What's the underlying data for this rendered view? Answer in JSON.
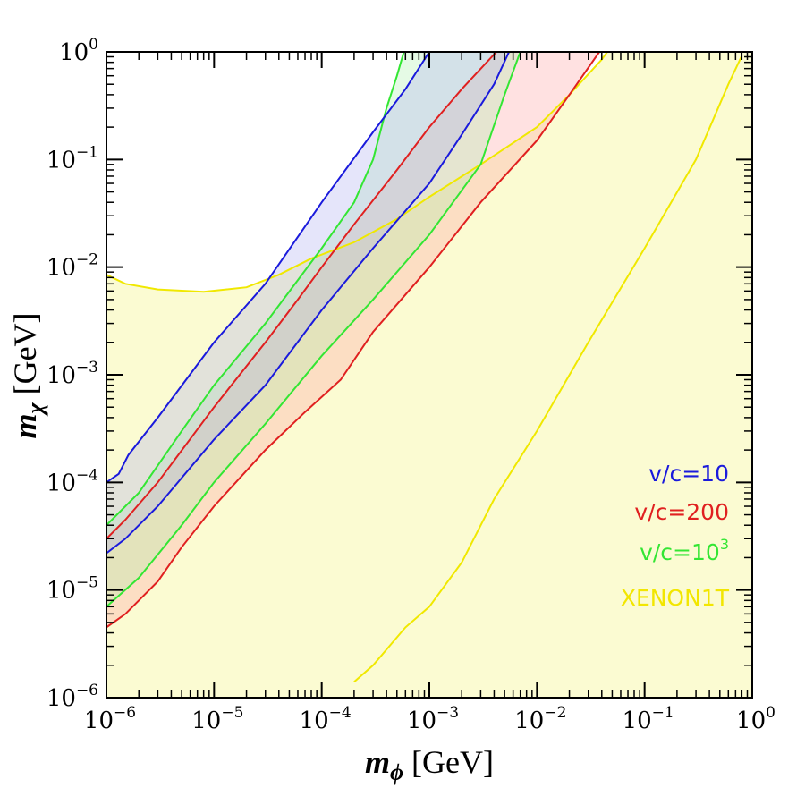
{
  "chart_data": {
    "type": "area",
    "xscale": "log",
    "yscale": "log",
    "xlim": [
      1e-06,
      1
    ],
    "ylim": [
      1e-06,
      1
    ],
    "xlabel": {
      "symbol": "m",
      "subscript": "ϕ",
      "unit": " [GeV]"
    },
    "ylabel": {
      "symbol": "m",
      "subscript": "χ",
      "unit": " [GeV]"
    },
    "x_ticks": [
      {
        "base": "10",
        "exp": "−6",
        "value": 1e-06
      },
      {
        "base": "10",
        "exp": "−5",
        "value": 1e-05
      },
      {
        "base": "10",
        "exp": "−4",
        "value": 0.0001
      },
      {
        "base": "10",
        "exp": "−3",
        "value": 0.001
      },
      {
        "base": "10",
        "exp": "−2",
        "value": 0.01
      },
      {
        "base": "10",
        "exp": "−1",
        "value": 0.1
      },
      {
        "base": "10",
        "exp": "0",
        "value": 1
      }
    ],
    "y_ticks": [
      {
        "base": "10",
        "exp": "−6",
        "value": 1e-06
      },
      {
        "base": "10",
        "exp": "−5",
        "value": 1e-05
      },
      {
        "base": "10",
        "exp": "−4",
        "value": 0.0001
      },
      {
        "base": "10",
        "exp": "−3",
        "value": 0.001
      },
      {
        "base": "10",
        "exp": "−2",
        "value": 0.01
      },
      {
        "base": "10",
        "exp": "−1",
        "value": 0.1
      },
      {
        "base": "10",
        "exp": "0",
        "value": 1
      }
    ],
    "legend": [
      {
        "text": "v/c=10",
        "sup": "",
        "color": "#1a1adc"
      },
      {
        "text": "v/c=200",
        "sup": "",
        "color": "#e02020"
      },
      {
        "text": "v/c=10",
        "sup": "3",
        "color": "#33e633"
      },
      {
        "text": "XENON1T",
        "sup": "",
        "color": "#f2e600"
      }
    ],
    "series": [
      {
        "name": "XENON1T",
        "color": "#f0e800",
        "fill": "#fbfbd2",
        "fill_opacity": 1,
        "upper": [
          [
            1e-06,
            0.0085
          ],
          [
            1.5e-06,
            0.007
          ],
          [
            3e-06,
            0.0062
          ],
          [
            8e-06,
            0.0059
          ],
          [
            2e-05,
            0.0065
          ],
          [
            4e-05,
            0.0085
          ],
          [
            8e-05,
            0.012
          ],
          [
            0.0002,
            0.017
          ],
          [
            0.0005,
            0.028
          ],
          [
            0.001,
            0.045
          ],
          [
            0.003,
            0.09
          ],
          [
            0.01,
            0.2
          ],
          [
            0.02,
            0.4
          ],
          [
            0.04,
            0.85
          ],
          [
            0.045,
            1
          ]
        ],
        "lower": [
          [
            0.0002,
            1.4e-06
          ],
          [
            0.0003,
            2e-06
          ],
          [
            0.0006,
            4.5e-06
          ],
          [
            0.001,
            7e-06
          ],
          [
            0.002,
            1.8e-05
          ],
          [
            0.004,
            7e-05
          ],
          [
            0.01,
            0.0003
          ],
          [
            0.03,
            0.002
          ],
          [
            0.1,
            0.015
          ],
          [
            0.3,
            0.1
          ],
          [
            0.6,
            0.5
          ],
          [
            0.8,
            0.92
          ]
        ],
        "region_corners": [
          [
            1,
            1
          ],
          [
            1,
            1e-06
          ],
          [
            0.0002,
            1e-06
          ],
          [
            1e-06,
            1e-06
          ]
        ]
      },
      {
        "name": "v/c=200",
        "color": "#e02020",
        "fill": "#ffa8a8",
        "fill_opacity": 0.35,
        "upper": [
          [
            1e-06,
            3e-05
          ],
          [
            1.5e-06,
            4.5e-05
          ],
          [
            3e-06,
            0.0001
          ],
          [
            1e-05,
            0.0005
          ],
          [
            3e-05,
            0.002
          ],
          [
            6e-05,
            0.005
          ],
          [
            0.0001,
            0.01
          ],
          [
            0.0002,
            0.025
          ],
          [
            0.0005,
            0.08
          ],
          [
            0.001,
            0.2
          ],
          [
            0.002,
            0.45
          ],
          [
            0.0042,
            1
          ]
        ],
        "lower": [
          [
            1e-06,
            4.5e-06
          ],
          [
            1.5e-06,
            6e-06
          ],
          [
            3e-06,
            1.2e-05
          ],
          [
            5e-06,
            2.5e-05
          ],
          [
            1e-05,
            6e-05
          ],
          [
            3e-05,
            0.0002
          ],
          [
            7e-05,
            0.00045
          ],
          [
            0.00015,
            0.0009
          ],
          [
            0.0003,
            0.0025
          ],
          [
            0.001,
            0.01
          ],
          [
            0.003,
            0.04
          ],
          [
            0.01,
            0.15
          ],
          [
            0.02,
            0.4
          ],
          [
            0.038,
            1
          ]
        ]
      },
      {
        "name": "v/c=10^3",
        "color": "#33e633",
        "fill": "#a8f0a8",
        "fill_opacity": 0.3,
        "upper": [
          [
            1e-06,
            4e-05
          ],
          [
            2e-06,
            8e-05
          ],
          [
            5e-06,
            0.0003
          ],
          [
            1e-05,
            0.0008
          ],
          [
            3e-05,
            0.003
          ],
          [
            0.0001,
            0.015
          ],
          [
            0.0002,
            0.04
          ],
          [
            0.0003,
            0.1
          ],
          [
            0.0004,
            0.3
          ],
          [
            0.0005,
            0.6
          ],
          [
            0.00058,
            1
          ]
        ],
        "lower": [
          [
            1e-06,
            7e-06
          ],
          [
            2e-06,
            1.3e-05
          ],
          [
            5e-06,
            4e-05
          ],
          [
            1e-05,
            0.0001
          ],
          [
            3e-05,
            0.00035
          ],
          [
            0.0001,
            0.0015
          ],
          [
            0.0003,
            0.005
          ],
          [
            0.001,
            0.02
          ],
          [
            0.003,
            0.09
          ],
          [
            0.005,
            0.4
          ],
          [
            0.007,
            1
          ]
        ]
      },
      {
        "name": "v/c=10",
        "color": "#1a1adc",
        "fill": "#a8a8f0",
        "fill_opacity": 0.3,
        "upper": [
          [
            1e-06,
            0.0001
          ],
          [
            1.3e-06,
            0.00012
          ],
          [
            1.6e-06,
            0.00018
          ],
          [
            3e-06,
            0.0004
          ],
          [
            1e-05,
            0.002
          ],
          [
            3e-05,
            0.007
          ],
          [
            0.0001,
            0.04
          ],
          [
            0.0003,
            0.18
          ],
          [
            0.0006,
            0.45
          ],
          [
            0.001,
            1
          ]
        ],
        "lower": [
          [
            1e-06,
            2.2e-05
          ],
          [
            1.5e-06,
            3e-05
          ],
          [
            3e-06,
            6e-05
          ],
          [
            1e-05,
            0.00025
          ],
          [
            3e-05,
            0.0008
          ],
          [
            0.0001,
            0.004
          ],
          [
            0.0003,
            0.015
          ],
          [
            0.001,
            0.06
          ],
          [
            0.002,
            0.17
          ],
          [
            0.004,
            0.5
          ],
          [
            0.0055,
            1
          ]
        ]
      }
    ]
  }
}
